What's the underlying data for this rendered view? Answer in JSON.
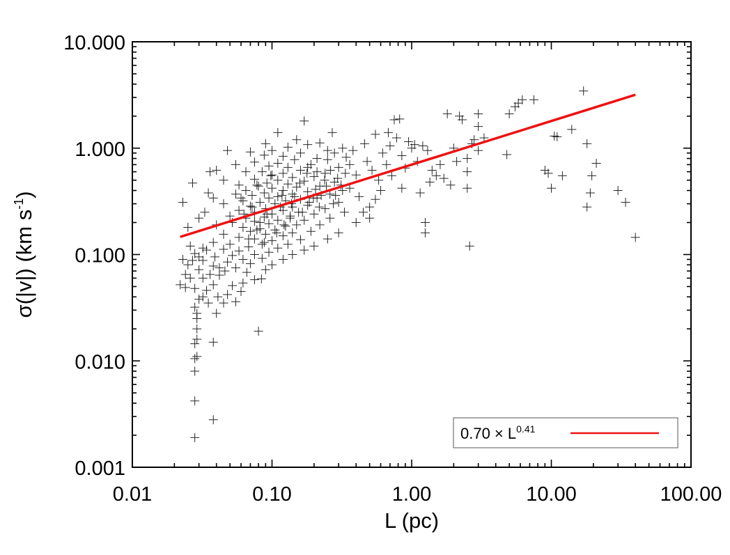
{
  "chart_data": {
    "type": "scatter",
    "title": "",
    "xlabel": "L (pc)",
    "ylabel": "σ(|v|) (km s",
    "ylabel_sup": "-1",
    "ylabel_end": ")",
    "xscale": "log",
    "yscale": "log",
    "xlim": [
      0.01,
      100
    ],
    "ylim": [
      0.001,
      10
    ],
    "x_tick_labels": [
      {
        "value": 0.01,
        "label": "0.01"
      },
      {
        "value": 0.1,
        "label": "0.10"
      },
      {
        "value": 1,
        "label": "1.00"
      },
      {
        "value": 10,
        "label": "10.00"
      },
      {
        "value": 100,
        "label": "100.00"
      }
    ],
    "y_tick_labels": [
      {
        "value": 0.001,
        "label": "0.001"
      },
      {
        "value": 0.01,
        "label": "0.010"
      },
      {
        "value": 0.1,
        "label": "0.100"
      },
      {
        "value": 1,
        "label": "1.000"
      },
      {
        "value": 10,
        "label": "10.000"
      }
    ],
    "grid": false,
    "marker": "+",
    "marker_color": "#000000",
    "fit_color": "#ee1111",
    "legend": {
      "position": "bottom-right",
      "text_main": "0.70 × L",
      "text_sup": "0.41"
    },
    "fit": {
      "coefficient": 0.7,
      "exponent": 0.41,
      "x_range": [
        0.022,
        40
      ]
    },
    "series": [
      {
        "points": [
          [
            0.028,
            0.0019
          ],
          [
            0.038,
            0.0028
          ],
          [
            0.028,
            0.0042
          ],
          [
            0.028,
            0.008
          ],
          [
            0.028,
            0.0105
          ],
          [
            0.029,
            0.011
          ],
          [
            0.028,
            0.0145
          ],
          [
            0.029,
            0.016
          ],
          [
            0.038,
            0.015
          ],
          [
            0.029,
            0.02
          ],
          [
            0.029,
            0.025
          ],
          [
            0.029,
            0.028
          ],
          [
            0.04,
            0.028
          ],
          [
            0.08,
            0.019
          ],
          [
            0.028,
            0.032
          ],
          [
            0.03,
            0.038
          ],
          [
            0.035,
            0.035
          ],
          [
            0.045,
            0.035
          ],
          [
            0.055,
            0.036
          ],
          [
            0.041,
            0.04
          ],
          [
            0.032,
            0.04
          ],
          [
            0.048,
            0.042
          ],
          [
            0.06,
            0.045
          ],
          [
            0.034,
            0.046
          ],
          [
            0.028,
            0.048
          ],
          [
            0.022,
            0.052
          ],
          [
            0.024,
            0.049
          ],
          [
            0.038,
            0.052
          ],
          [
            0.052,
            0.051
          ],
          [
            0.062,
            0.054
          ],
          [
            0.075,
            0.058
          ],
          [
            0.032,
            0.06
          ],
          [
            0.024,
            0.065
          ],
          [
            0.042,
            0.064
          ],
          [
            0.084,
            0.059
          ],
          [
            0.066,
            0.068
          ],
          [
            0.046,
            0.07
          ],
          [
            0.03,
            0.072
          ],
          [
            0.055,
            0.075
          ],
          [
            0.09,
            0.072
          ],
          [
            0.038,
            0.078
          ],
          [
            0.025,
            0.08
          ],
          [
            0.07,
            0.082
          ],
          [
            0.048,
            0.085
          ],
          [
            0.1,
            0.08
          ],
          [
            0.032,
            0.088
          ],
          [
            0.062,
            0.09
          ],
          [
            0.023,
            0.09
          ],
          [
            0.085,
            0.092
          ],
          [
            0.12,
            0.09
          ],
          [
            0.039,
            0.095
          ],
          [
            0.052,
            0.098
          ],
          [
            0.075,
            0.1
          ],
          [
            0.14,
            0.1
          ],
          [
            0.028,
            0.102
          ],
          [
            0.095,
            0.105
          ],
          [
            0.058,
            0.108
          ],
          [
            0.045,
            0.112
          ],
          [
            0.11,
            0.115
          ],
          [
            0.17,
            0.11
          ],
          [
            0.032,
            0.115
          ],
          [
            0.068,
            0.118
          ],
          [
            0.085,
            0.125
          ],
          [
            0.13,
            0.125
          ],
          [
            0.2,
            0.12
          ],
          [
            0.05,
            0.125
          ],
          [
            0.038,
            0.13
          ],
          [
            0.1,
            0.135
          ],
          [
            0.075,
            0.14
          ],
          [
            0.16,
            0.138
          ],
          [
            0.058,
            0.145
          ],
          [
            0.12,
            0.15
          ],
          [
            0.09,
            0.155
          ],
          [
            0.25,
            0.14
          ],
          [
            0.045,
            0.155
          ],
          [
            0.14,
            0.16
          ],
          [
            0.07,
            0.165
          ],
          [
            0.105,
            0.17
          ],
          [
            0.19,
            0.165
          ],
          [
            0.082,
            0.175
          ],
          [
            0.3,
            0.16
          ],
          [
            0.062,
            0.18
          ],
          [
            0.125,
            0.185
          ],
          [
            0.15,
            0.19
          ],
          [
            0.095,
            0.195
          ],
          [
            0.22,
            0.19
          ],
          [
            0.052,
            0.2
          ],
          [
            0.075,
            0.205
          ],
          [
            0.11,
            0.21
          ],
          [
            0.17,
            0.21
          ],
          [
            0.4,
            0.2
          ],
          [
            0.065,
            0.22
          ],
          [
            0.088,
            0.225
          ],
          [
            0.135,
            0.23
          ],
          [
            0.26,
            0.22
          ],
          [
            0.05,
            0.23
          ],
          [
            0.1,
            0.24
          ],
          [
            0.2,
            0.24
          ],
          [
            0.075,
            0.25
          ],
          [
            0.155,
            0.25
          ],
          [
            0.12,
            0.26
          ],
          [
            0.33,
            0.25
          ],
          [
            0.058,
            0.26
          ],
          [
            0.09,
            0.27
          ],
          [
            0.24,
            0.27
          ],
          [
            0.14,
            0.28
          ],
          [
            0.07,
            0.285
          ],
          [
            0.18,
            0.29
          ],
          [
            0.105,
            0.3
          ],
          [
            0.045,
            0.3
          ],
          [
            0.5,
            0.28
          ],
          [
            0.082,
            0.31
          ],
          [
            0.125,
            0.32
          ],
          [
            0.3,
            0.31
          ],
          [
            0.062,
            0.32
          ],
          [
            0.16,
            0.33
          ],
          [
            0.095,
            0.34
          ],
          [
            0.21,
            0.34
          ],
          [
            0.038,
            0.34
          ],
          [
            0.11,
            0.35
          ],
          [
            0.072,
            0.36
          ],
          [
            0.14,
            0.37
          ],
          [
            0.42,
            0.35
          ],
          [
            0.26,
            0.37
          ],
          [
            0.055,
            0.37
          ],
          [
            0.088,
            0.38
          ],
          [
            0.18,
            0.39
          ],
          [
            0.12,
            0.4
          ],
          [
            0.065,
            0.4
          ],
          [
            0.1,
            0.42
          ],
          [
            0.15,
            0.43
          ],
          [
            0.035,
            0.38
          ],
          [
            0.22,
            0.44
          ],
          [
            0.08,
            0.44
          ],
          [
            0.36,
            0.42
          ],
          [
            0.6,
            0.4
          ],
          [
            0.13,
            0.46
          ],
          [
            0.092,
            0.47
          ],
          [
            0.058,
            0.45
          ],
          [
            0.17,
            0.49
          ],
          [
            0.11,
            0.5
          ],
          [
            0.28,
            0.48
          ],
          [
            0.075,
            0.51
          ],
          [
            0.14,
            0.53
          ],
          [
            0.2,
            0.54
          ],
          [
            0.045,
            0.5
          ],
          [
            0.1,
            0.56
          ],
          [
            0.12,
            0.58
          ],
          [
            0.085,
            0.6
          ],
          [
            0.24,
            0.58
          ],
          [
            0.16,
            0.62
          ],
          [
            0.4,
            0.56
          ],
          [
            0.065,
            0.6
          ],
          [
            0.13,
            0.66
          ],
          [
            0.095,
            0.68
          ],
          [
            0.19,
            0.7
          ],
          [
            0.11,
            0.72
          ],
          [
            0.3,
            0.66
          ],
          [
            0.075,
            0.74
          ],
          [
            0.145,
            0.78
          ],
          [
            0.055,
            0.7
          ],
          [
            0.21,
            0.8
          ],
          [
            0.12,
            0.84
          ],
          [
            0.088,
            0.86
          ],
          [
            0.16,
            0.9
          ],
          [
            0.34,
            0.82
          ],
          [
            0.1,
            0.95
          ],
          [
            0.07,
            0.92
          ],
          [
            0.25,
            0.95
          ],
          [
            0.13,
            1.02
          ],
          [
            0.18,
            1.08
          ],
          [
            0.09,
            1.1
          ],
          [
            0.048,
            0.95
          ],
          [
            0.11,
            1.4
          ],
          [
            0.17,
            1.8
          ],
          [
            0.27,
            1.4
          ],
          [
            0.15,
            1.2
          ],
          [
            0.22,
            1.12
          ],
          [
            0.38,
            0.95
          ],
          [
            0.46,
            1.1
          ],
          [
            0.55,
            1.35
          ],
          [
            0.48,
            0.75
          ],
          [
            0.62,
            0.9
          ],
          [
            0.7,
            1.05
          ],
          [
            0.52,
            0.62
          ],
          [
            0.78,
            1.25
          ],
          [
            0.66,
            0.7
          ],
          [
            0.85,
            0.85
          ],
          [
            0.58,
            0.5
          ],
          [
            0.75,
            1.85
          ],
          [
            0.82,
            1.88
          ],
          [
            0.95,
            1.15
          ],
          [
            0.68,
            1.4
          ],
          [
            0.9,
            0.65
          ],
          [
            1.0,
            1.0
          ],
          [
            0.72,
            0.55
          ],
          [
            1.05,
            1.08
          ],
          [
            0.55,
            0.33
          ],
          [
            0.45,
            0.25
          ],
          [
            0.5,
            0.22
          ],
          [
            0.85,
            0.42
          ],
          [
            1.1,
            0.75
          ],
          [
            1.2,
            1.05
          ],
          [
            1.3,
            0.95
          ],
          [
            1.4,
            0.62
          ],
          [
            1.5,
            0.55
          ],
          [
            1.25,
            0.2
          ],
          [
            1.25,
            0.16
          ],
          [
            1.6,
            0.7
          ],
          [
            1.8,
            2.1
          ],
          [
            2.0,
            1.0
          ],
          [
            2.2,
            2.0
          ],
          [
            2.3,
            1.85
          ],
          [
            2.5,
            0.8
          ],
          [
            2.5,
            0.6
          ],
          [
            2.6,
            0.12
          ],
          [
            2.5,
            0.42
          ],
          [
            2.8,
            1.2
          ],
          [
            3.0,
            1.6
          ],
          [
            3.0,
            2.1
          ],
          [
            3.3,
            1.25
          ],
          [
            3.0,
            0.95
          ],
          [
            2.7,
            1.1
          ],
          [
            1.7,
            0.52
          ],
          [
            1.9,
            0.45
          ],
          [
            2.1,
            0.75
          ],
          [
            1.35,
            0.48
          ],
          [
            1.15,
            0.38
          ],
          [
            4.8,
            0.87
          ],
          [
            5.0,
            2.1
          ],
          [
            5.5,
            2.45
          ],
          [
            5.8,
            2.65
          ],
          [
            6.2,
            2.85
          ],
          [
            7.5,
            2.85
          ],
          [
            9.0,
            0.62
          ],
          [
            9.5,
            0.58
          ],
          [
            10.0,
            0.42
          ],
          [
            10.5,
            1.3
          ],
          [
            11.0,
            1.28
          ],
          [
            12.0,
            0.55
          ],
          [
            14.0,
            1.5
          ],
          [
            17.0,
            3.45
          ],
          [
            18.0,
            1.1
          ],
          [
            18.0,
            0.28
          ],
          [
            19.0,
            0.38
          ],
          [
            19.5,
            0.55
          ],
          [
            21.0,
            0.72
          ],
          [
            30.0,
            0.4
          ],
          [
            34.0,
            0.31
          ],
          [
            40.0,
            0.145
          ],
          [
            0.06,
            0.34
          ],
          [
            0.078,
            0.45
          ],
          [
            0.098,
            0.55
          ],
          [
            0.118,
            0.36
          ],
          [
            0.138,
            0.3
          ],
          [
            0.158,
            0.47
          ],
          [
            0.178,
            0.58
          ],
          [
            0.198,
            0.34
          ],
          [
            0.218,
            0.28
          ],
          [
            0.238,
            0.5
          ],
          [
            0.262,
            0.62
          ],
          [
            0.285,
            0.36
          ],
          [
            0.312,
            0.45
          ],
          [
            0.335,
            0.58
          ],
          [
            0.36,
            0.7
          ],
          [
            0.068,
            0.14
          ],
          [
            0.078,
            0.17
          ],
          [
            0.088,
            0.13
          ],
          [
            0.108,
            0.16
          ],
          [
            0.122,
            0.19
          ],
          [
            0.092,
            0.24
          ],
          [
            0.082,
            0.2
          ],
          [
            0.072,
            0.28
          ],
          [
            0.063,
            0.24
          ],
          [
            0.115,
            0.28
          ],
          [
            0.135,
            0.22
          ],
          [
            0.145,
            0.35
          ],
          [
            0.165,
            0.25
          ],
          [
            0.185,
            0.31
          ],
          [
            0.205,
            0.41
          ],
          [
            0.225,
            0.36
          ],
          [
            0.245,
            0.44
          ],
          [
            0.275,
            0.3
          ],
          [
            0.295,
            0.52
          ],
          [
            0.32,
            0.4
          ],
          [
            0.25,
            0.78
          ],
          [
            0.28,
            0.9
          ],
          [
            0.32,
            1.0
          ],
          [
            0.18,
            0.66
          ],
          [
            0.21,
            0.6
          ],
          [
            0.026,
            0.12
          ],
          [
            0.03,
            0.095
          ],
          [
            0.034,
            0.11
          ],
          [
            0.027,
            0.088
          ],
          [
            0.036,
            0.065
          ],
          [
            0.042,
            0.075
          ],
          [
            0.026,
            0.06
          ],
          [
            0.023,
            0.31
          ],
          [
            0.027,
            0.47
          ],
          [
            0.036,
            0.6
          ],
          [
            0.04,
            0.62
          ],
          [
            0.03,
            0.22
          ],
          [
            0.025,
            0.18
          ],
          [
            0.033,
            0.25
          ],
          [
            0.04,
            0.19
          ]
        ]
      }
    ]
  }
}
